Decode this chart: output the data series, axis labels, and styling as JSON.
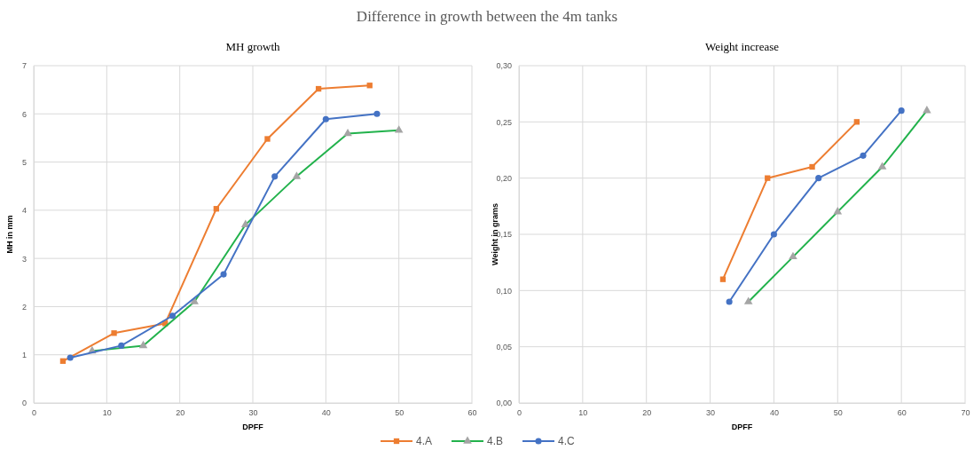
{
  "chart_data": [
    {
      "type": "other",
      "title": "Difference in growth between the 4m tanks"
    },
    {
      "type": "line",
      "title": "MH growth",
      "xlabel": "DPFF",
      "ylabel": "MH in mm",
      "xlim": [
        0,
        60
      ],
      "xticks": [
        0,
        10,
        20,
        30,
        40,
        50,
        60
      ],
      "ylim": [
        0,
        7
      ],
      "yticks": [
        0,
        1,
        2,
        3,
        4,
        5,
        6,
        7
      ],
      "grid": true,
      "series": [
        {
          "color": "#ed7d31",
          "marker": "square",
          "x": [
            4,
            11,
            18,
            25,
            32,
            39,
            46
          ],
          "values": [
            0.87,
            1.45,
            1.65,
            4.03,
            5.48,
            6.52,
            6.59
          ]
        },
        {
          "color": "#22b24c",
          "marker": "triangle",
          "colors": [
            "#a5a5a5",
            "#a5a5a5",
            "#a5a5a5",
            "#a5a5a5",
            "#a5a5a5",
            "#a5a5a5",
            "#a5a5a5"
          ],
          "x": [
            8,
            15,
            22,
            29,
            36,
            43,
            50
          ],
          "values": [
            1.08,
            1.19,
            2.1,
            3.7,
            4.7,
            5.59,
            5.66
          ]
        },
        {
          "color": "#4472c4",
          "marker": "circle",
          "x": [
            5,
            12,
            19,
            26,
            33,
            40,
            47
          ],
          "values": [
            0.94,
            1.19,
            1.81,
            2.67,
            4.7,
            5.89,
            6.0
          ]
        }
      ]
    },
    {
      "type": "line",
      "title": "Weight increase",
      "xlabel": "DPFF",
      "ylabel": "Weight in grams",
      "xlim": [
        0,
        70
      ],
      "xticks": [
        0,
        10,
        20,
        30,
        40,
        50,
        60,
        70
      ],
      "ylim": [
        0,
        0.3
      ],
      "yticks": [
        {
          "value": 0,
          "label": "0,00"
        },
        {
          "value": 0.05,
          "label": "0,05"
        },
        {
          "value": 0.1,
          "label": "0,10"
        },
        {
          "value": 0.15,
          "label": "0,15"
        },
        {
          "value": 0.2,
          "label": "0,20"
        },
        {
          "value": 0.25,
          "label": "0,25"
        },
        {
          "value": 0.3,
          "label": "0,30"
        }
      ],
      "grid": true,
      "legend": "bottom",
      "series": [
        {
          "name": "4.A",
          "color": "#ed7d31",
          "marker": "square",
          "x": [
            32,
            39,
            46,
            53
          ],
          "values": [
            0.11,
            0.2,
            0.21,
            0.25
          ]
        },
        {
          "name": "4.B",
          "color": "#22b24c",
          "marker": "triangle",
          "colors": [
            "#a5a5a5",
            "#a5a5a5",
            "#a5a5a5",
            "#a5a5a5",
            "#a5a5a5"
          ],
          "x": [
            36,
            43,
            50,
            57,
            64
          ],
          "values": [
            0.09,
            0.13,
            0.17,
            0.21,
            0.26
          ]
        },
        {
          "name": "4.C",
          "color": "#4472c4",
          "marker": "circle",
          "x": [
            33,
            40,
            47,
            54,
            60
          ],
          "values": [
            0.09,
            0.15,
            0.2,
            0.22,
            0.26
          ]
        }
      ]
    }
  ]
}
